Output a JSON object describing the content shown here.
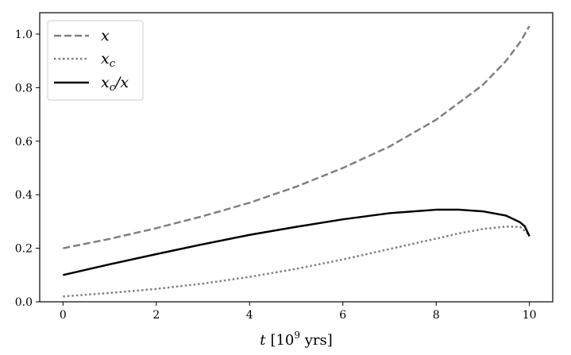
{
  "chart_data": {
    "type": "line",
    "title": "",
    "xlabel_main": "t",
    "xlabel_unit_pre": "[10",
    "xlabel_unit_exp": "9",
    "xlabel_unit_post": " yrs]",
    "ylabel": "",
    "xlim": [
      -0.5,
      10.5
    ],
    "ylim": [
      0.0,
      1.08
    ],
    "xticks": [
      "0",
      "2",
      "4",
      "6",
      "8",
      "10"
    ],
    "yticks": [
      "0.0",
      "0.2",
      "0.4",
      "0.6",
      "0.8",
      "1.0"
    ],
    "grid": false,
    "legend_position": "top-left",
    "series": [
      {
        "name": "x",
        "color": "#808080",
        "style": "dashed",
        "x": [
          0,
          1,
          2,
          3,
          4,
          5,
          6,
          7,
          8,
          9,
          9.5,
          9.8,
          10
        ],
        "y": [
          0.2,
          0.235,
          0.275,
          0.32,
          0.37,
          0.43,
          0.5,
          0.58,
          0.68,
          0.81,
          0.9,
          0.97,
          1.03
        ]
      },
      {
        "name": "x_c",
        "color": "#808080",
        "style": "dotted",
        "x": [
          0,
          1,
          2,
          3,
          4,
          5,
          6,
          7,
          8,
          8.5,
          9,
          9.5,
          9.8,
          10
        ],
        "y": [
          0.02,
          0.033,
          0.048,
          0.068,
          0.093,
          0.123,
          0.158,
          0.197,
          0.236,
          0.256,
          0.272,
          0.281,
          0.28,
          0.25
        ]
      },
      {
        "name": "x_c/x",
        "color": "#000000",
        "style": "solid",
        "x": [
          0,
          1,
          2,
          3,
          4,
          5,
          6,
          7,
          8,
          8.5,
          9,
          9.5,
          9.8,
          9.9,
          10
        ],
        "y": [
          0.1,
          0.14,
          0.178,
          0.215,
          0.25,
          0.28,
          0.308,
          0.331,
          0.344,
          0.344,
          0.338,
          0.322,
          0.297,
          0.282,
          0.245
        ]
      }
    ]
  }
}
